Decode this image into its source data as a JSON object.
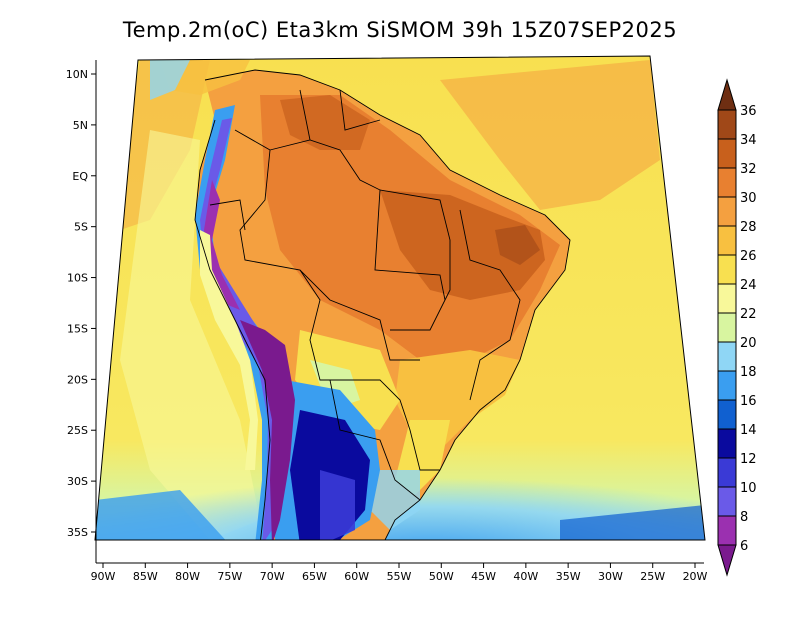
{
  "title": "Temp.2m(oC) Eta3km SiSMOM 39h 15Z07SEP2025",
  "lon_ticks": [
    {
      "value": -90,
      "label": "90W"
    },
    {
      "value": -85,
      "label": "85W"
    },
    {
      "value": -80,
      "label": "80W"
    },
    {
      "value": -75,
      "label": "75W"
    },
    {
      "value": -70,
      "label": "70W"
    },
    {
      "value": -65,
      "label": "65W"
    },
    {
      "value": -60,
      "label": "60W"
    },
    {
      "value": -55,
      "label": "55W"
    },
    {
      "value": -50,
      "label": "50W"
    },
    {
      "value": -45,
      "label": "45W"
    },
    {
      "value": -40,
      "label": "40W"
    },
    {
      "value": -35,
      "label": "35W"
    },
    {
      "value": -30,
      "label": "30W"
    },
    {
      "value": -25,
      "label": "25W"
    },
    {
      "value": -20,
      "label": "20W"
    }
  ],
  "lat_ticks": [
    {
      "value": 10,
      "label": "10N"
    },
    {
      "value": 5,
      "label": "5N"
    },
    {
      "value": 0,
      "label": "EQ"
    },
    {
      "value": -5,
      "label": "5S"
    },
    {
      "value": -10,
      "label": "10S"
    },
    {
      "value": -15,
      "label": "15S"
    },
    {
      "value": -20,
      "label": "20S"
    },
    {
      "value": -25,
      "label": "25S"
    },
    {
      "value": -30,
      "label": "30S"
    },
    {
      "value": -35,
      "label": "35S"
    }
  ],
  "colorbar": {
    "levels": [
      "6",
      "8",
      "10",
      "12",
      "14",
      "16",
      "18",
      "20",
      "22",
      "24",
      "26",
      "28",
      "30",
      "32",
      "34",
      "36"
    ],
    "colors": [
      "#7a1a8e",
      "#9b30b0",
      "#6a5ae8",
      "#3a3ad6",
      "#0a0a9e",
      "#1060d0",
      "#3a9ef0",
      "#8fd6f5",
      "#d8f5a0",
      "#f8f89a",
      "#f8e050",
      "#f8c040",
      "#f4a040",
      "#e88030",
      "#c8601c",
      "#a04818",
      "#6e2e12"
    ]
  }
}
